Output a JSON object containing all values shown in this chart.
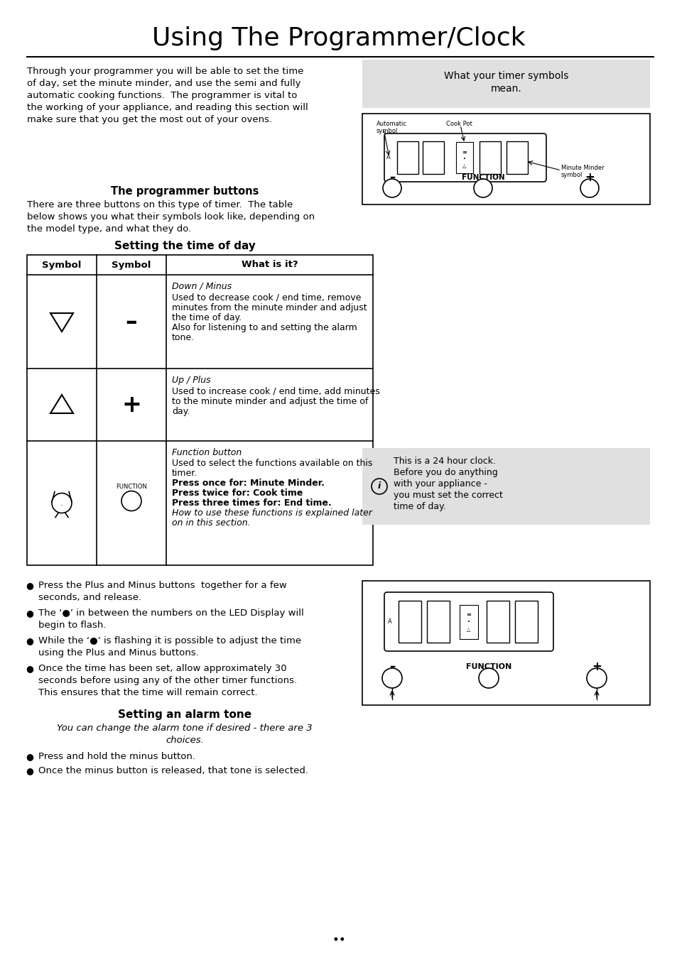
{
  "title": "Using The Programmer/Clock",
  "bg_color": "#ffffff",
  "intro_lines": [
    "Through your programmer you will be able to set the time",
    "of day, set the minute minder, and use the semi and fully",
    "automatic cooking functions.  The programmer is vital to",
    "the working of your appliance, and reading this section will",
    "make sure that you get the most out of your ovens."
  ],
  "sidebar_box1_text1": "What your timer symbols",
  "sidebar_box1_text2": "mean.",
  "programmer_buttons_heading": "The programmer buttons",
  "programmer_buttons_lines": [
    "There are three buttons on this type of timer.  The table",
    "below shows you what their symbols look like, depending on",
    "the model type, and what they do."
  ],
  "setting_time_heading": "Setting the time of day",
  "table_col_headers": [
    "Symbol",
    "Symbol",
    "What is it?"
  ],
  "row1_title": "Down / Minus",
  "row1_body": [
    "Used to decrease cook / end time, remove",
    "minutes from the minute minder and adjust",
    "the time of day.",
    "Also for listening to and setting the alarm",
    "tone."
  ],
  "row2_title": "Up / Plus",
  "row2_body": [
    "Used to increase cook / end time, add minutes",
    "to the minute minder and adjust the time of",
    "day."
  ],
  "row3_title": "Function button",
  "row3_normal": [
    "Used to select the functions available on this",
    "timer."
  ],
  "row3_bold": [
    "Press once for: Minute Minder.",
    "Press twice for: Cook time",
    "Press three times for: End time."
  ],
  "row3_italic": [
    "How to use these functions is explained later",
    "on in this section."
  ],
  "bullet_groups": [
    [
      "Press the Plus and Minus buttons  together for a few",
      "seconds, and release."
    ],
    [
      "The ‘●’ in between the numbers on the LED Display will",
      "begin to flash."
    ],
    [
      "While the ‘●’ is flashing it is possible to adjust the time",
      "using the Plus and Minus buttons."
    ],
    [
      "Once the time has been set, allow approximately 30",
      "seconds before using any of the other timer functions.",
      "This ensures that the time will remain correct."
    ]
  ],
  "setting_alarm_heading": "Setting an alarm tone",
  "setting_alarm_italic": [
    "You can change the alarm tone if desired - there are 3",
    "choices."
  ],
  "setting_alarm_bullets": [
    "Press and hold the minus button.",
    "Once the minus button is released, that tone is selected."
  ],
  "info_box_text": [
    "This is a 24 hour clock.",
    "Before you do anything",
    "with your appliance -",
    "you must set the correct",
    "time of day."
  ],
  "page_dots": "••"
}
